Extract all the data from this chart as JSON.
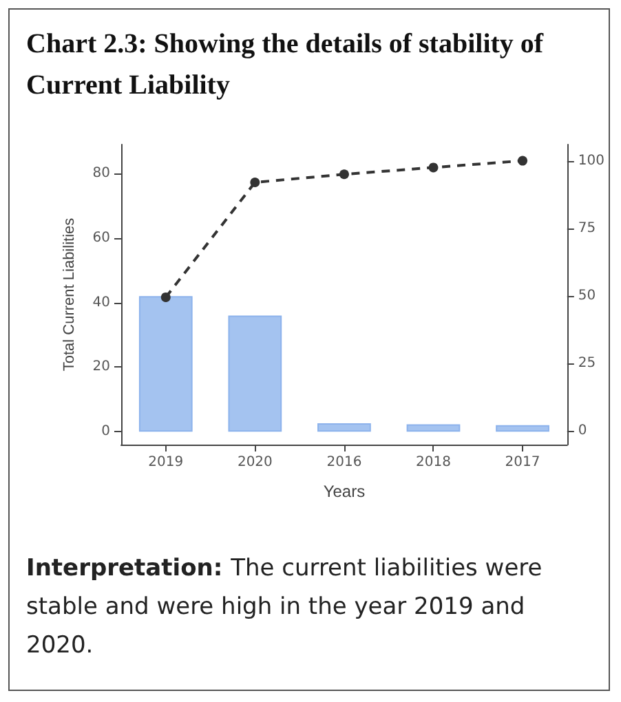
{
  "chart_data": {
    "type": "bar",
    "title": "Chart 2.3: Showing the details of stability of Current Liability",
    "categories": [
      "2019",
      "2020",
      "2016",
      "2018",
      "2017"
    ],
    "xlabel": "Years",
    "ylabel": "Total Current Liabilities",
    "series": [
      {
        "color": "#a4c3f0",
        "values": [
          42,
          36,
          2.6,
          2.3,
          2
        ]
      },
      {
        "type": "line",
        "axis": "y2",
        "color": "#333333",
        "values": [
          49.5,
          92,
          95,
          97.5,
          100
        ],
        "marker": "circle",
        "line_style": "dashed"
      }
    ],
    "ylim": [
      -4,
      89
    ],
    "yticks": [
      0,
      20,
      40,
      60,
      80
    ],
    "y2lim": [
      -5,
      106
    ],
    "y2ticks": [
      0,
      25,
      50,
      75,
      100
    ],
    "grid": false,
    "annotations": [
      "Interpretation:",
      "The current liabilities were stable and were high in the year 2019 and 2020."
    ]
  }
}
